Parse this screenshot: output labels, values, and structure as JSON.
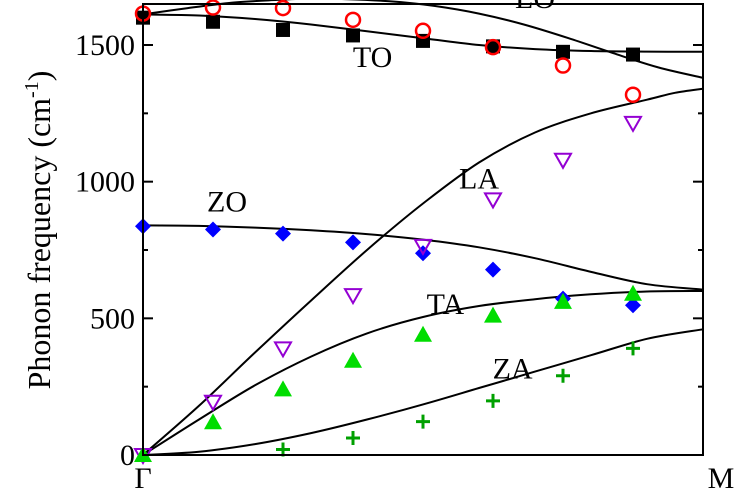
{
  "chart_data": {
    "type": "scatter",
    "ylabel": "Phonon frequency (cm",
    "ylabel_sup": "-1",
    "ylabel_close": ")",
    "xlabel": "",
    "xlim": [
      0,
      1
    ],
    "ylim": [
      0,
      1650
    ],
    "x_ticks": [
      {
        "pos": 0,
        "label": "Γ"
      },
      {
        "pos": 1,
        "label": "M"
      }
    ],
    "y_ticks": [
      {
        "value": 0,
        "label": "0"
      },
      {
        "value": 500,
        "label": "500"
      },
      {
        "value": 1000,
        "label": "1000"
      },
      {
        "value": 1500,
        "label": "1500"
      }
    ],
    "band_labels": [
      {
        "text": "LO",
        "x": 0.7,
        "y": 1635
      },
      {
        "text": "TO",
        "x": 0.41,
        "y": 1420
      },
      {
        "text": "LA",
        "x": 0.6,
        "y": 975
      },
      {
        "text": "ZO",
        "x": 0.15,
        "y": 890
      },
      {
        "text": "TA",
        "x": 0.54,
        "y": 515
      },
      {
        "text": "ZA",
        "x": 0.66,
        "y": 280
      }
    ],
    "curves": [
      {
        "name": "LO",
        "x": [
          0,
          0.08,
          0.16,
          0.24,
          0.3,
          0.36,
          0.44,
          0.52,
          0.6,
          0.68,
          0.76,
          0.84,
          0.92,
          1.0
        ],
        "y": [
          1612,
          1635,
          1655,
          1665,
          1670,
          1668,
          1660,
          1643,
          1615,
          1575,
          1525,
          1470,
          1418,
          1380
        ]
      },
      {
        "name": "TO",
        "x": [
          0,
          0.1,
          0.2,
          0.3,
          0.4,
          0.5,
          0.6,
          0.7,
          0.8,
          0.9,
          1.0
        ],
        "y": [
          1612,
          1608,
          1595,
          1575,
          1550,
          1525,
          1500,
          1485,
          1478,
          1476,
          1475
        ]
      },
      {
        "name": "ZO",
        "x": [
          0,
          0.1,
          0.2,
          0.3,
          0.4,
          0.5,
          0.6,
          0.7,
          0.8,
          0.9,
          1.0
        ],
        "y": [
          840,
          838,
          832,
          822,
          808,
          788,
          760,
          720,
          670,
          625,
          605
        ]
      },
      {
        "name": "LA",
        "x": [
          0,
          0.1,
          0.2,
          0.3,
          0.4,
          0.5,
          0.6,
          0.7,
          0.8,
          0.9,
          0.95,
          1.0
        ],
        "y": [
          0,
          180,
          375,
          565,
          750,
          920,
          1070,
          1180,
          1250,
          1300,
          1325,
          1340
        ]
      },
      {
        "name": "TA",
        "x": [
          0,
          0.1,
          0.2,
          0.3,
          0.4,
          0.5,
          0.6,
          0.7,
          0.8,
          0.9,
          1.0
        ],
        "y": [
          0,
          130,
          255,
          360,
          445,
          505,
          545,
          570,
          588,
          598,
          600
        ]
      },
      {
        "name": "ZA",
        "x": [
          0,
          0.1,
          0.2,
          0.3,
          0.4,
          0.5,
          0.6,
          0.7,
          0.8,
          0.9,
          1.0
        ],
        "y": [
          0,
          12,
          40,
          80,
          130,
          185,
          245,
          305,
          365,
          425,
          460
        ]
      }
    ],
    "series": [
      {
        "name": "TO points",
        "marker": "filled-square",
        "color": "#000000",
        "x": [
          0,
          0.125,
          0.25,
          0.375,
          0.5,
          0.625,
          0.75,
          0.875
        ],
        "y": [
          1600,
          1585,
          1555,
          1535,
          1515,
          1495,
          1475,
          1465
        ]
      },
      {
        "name": "LO points",
        "marker": "open-circle",
        "color": "#ff0000",
        "x": [
          0,
          0.125,
          0.25,
          0.375,
          0.5,
          0.625,
          0.75,
          0.875
        ],
        "y": [
          1615,
          1637,
          1635,
          1592,
          1552,
          1492,
          1425,
          1318
        ]
      },
      {
        "name": "ZO points",
        "marker": "filled-diamond",
        "color": "#0000ff",
        "x": [
          0,
          0.125,
          0.25,
          0.375,
          0.5,
          0.625,
          0.75,
          0.875
        ],
        "y": [
          837,
          825,
          810,
          778,
          738,
          678,
          572,
          548
        ]
      },
      {
        "name": "LA points",
        "marker": "open-triangle-down",
        "color": "#9400d3",
        "x": [
          0,
          0.125,
          0.25,
          0.375,
          0.5,
          0.625,
          0.75,
          0.875
        ],
        "y": [
          0,
          195,
          390,
          585,
          765,
          935,
          1080,
          1215
        ]
      },
      {
        "name": "TA points",
        "marker": "filled-triangle-up",
        "color": "#00dd00",
        "x": [
          0,
          0.125,
          0.25,
          0.375,
          0.5,
          0.625,
          0.75,
          0.875
        ],
        "y": [
          0,
          120,
          240,
          345,
          440,
          510,
          560,
          590
        ]
      },
      {
        "name": "ZA points",
        "marker": "plus",
        "color": "#00a000",
        "x": [
          0.25,
          0.375,
          0.5,
          0.625,
          0.75,
          0.875
        ],
        "y": [
          20,
          62,
          122,
          198,
          290,
          390
        ]
      }
    ],
    "grid": false,
    "legend": "none"
  }
}
